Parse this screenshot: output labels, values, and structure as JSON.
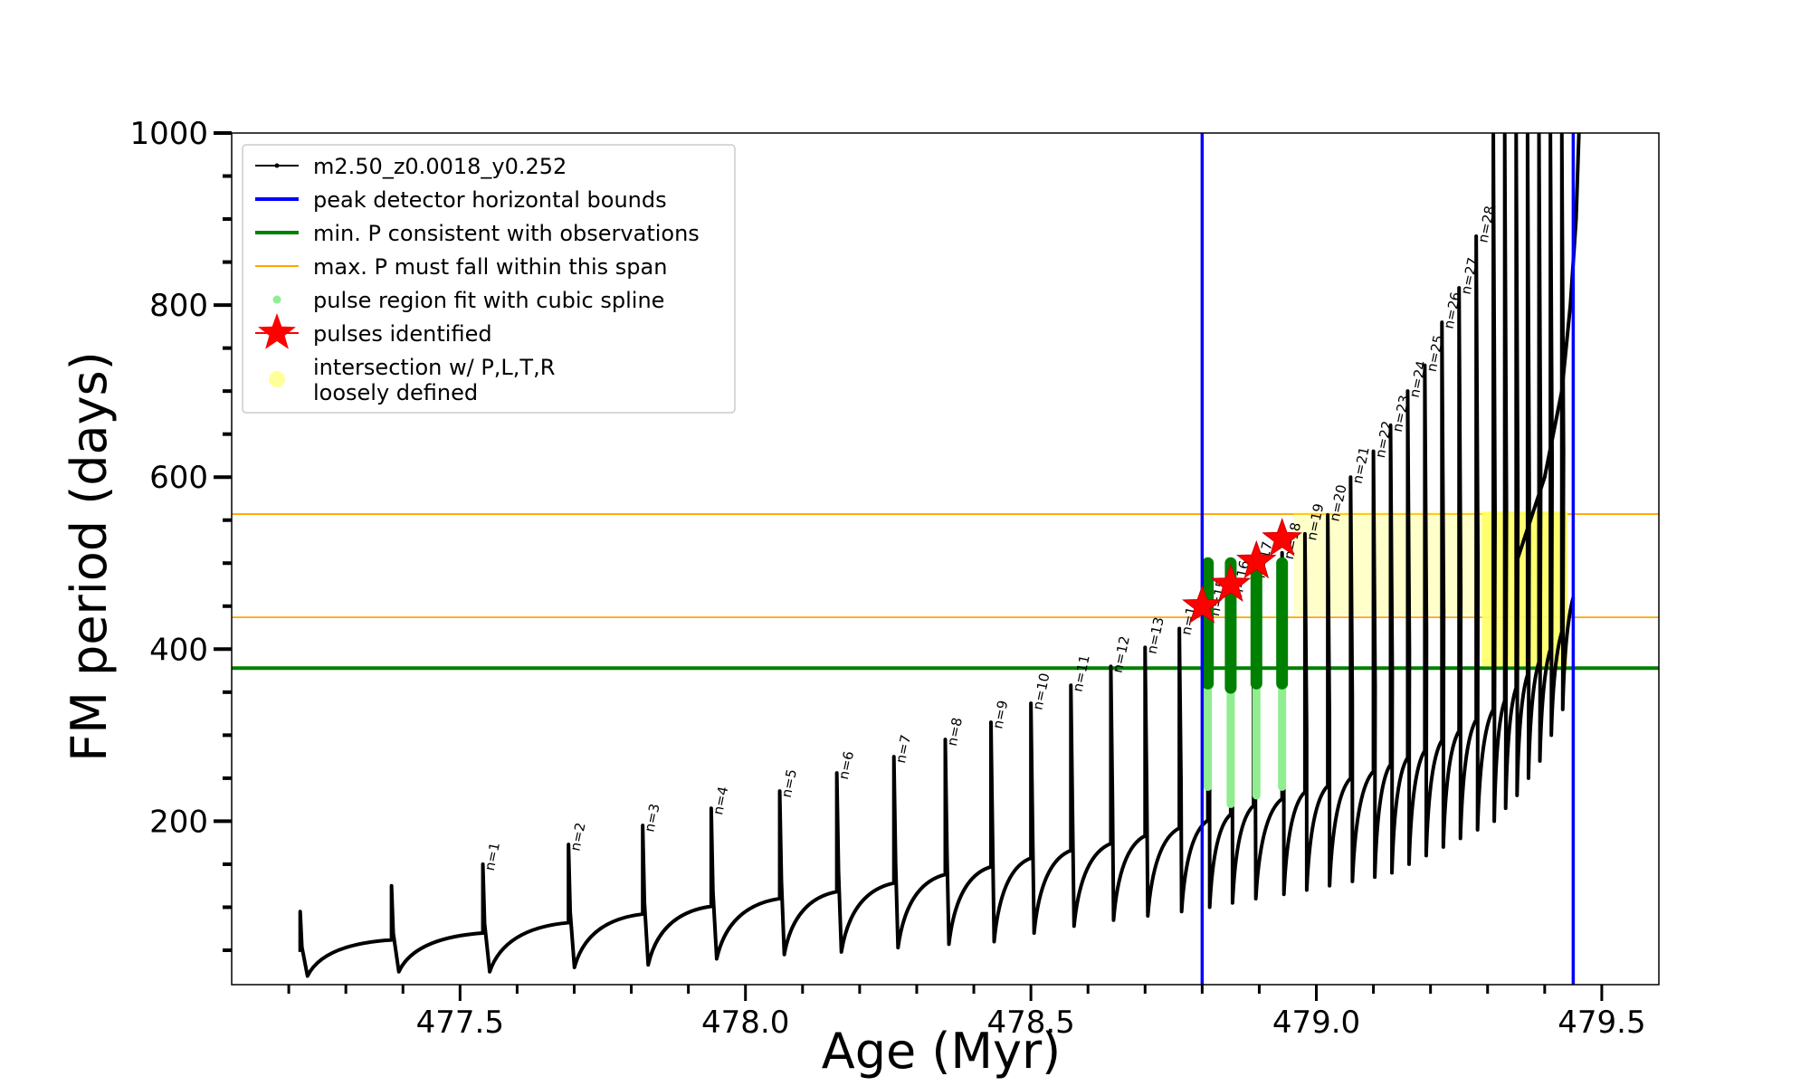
{
  "chart_data": {
    "type": "line",
    "xlabel": "Age (Myr)",
    "ylabel": "FM period (days)",
    "xlim": [
      477.1,
      479.6
    ],
    "ylim": [
      10,
      1000
    ],
    "x_ticks": [
      477.5,
      478.0,
      478.5,
      479.0,
      479.5
    ],
    "x_tick_labels": [
      "477.5",
      "478.0",
      "478.5",
      "479.0",
      "479.5"
    ],
    "y_ticks": [
      200,
      400,
      600,
      800,
      1000
    ],
    "y_tick_labels": [
      "200",
      "400",
      "600",
      "800",
      "1000"
    ],
    "legend_position": "upper-left",
    "legend": [
      {
        "label": "m2.50_z0.0018_y0.252",
        "kind": "line-dot",
        "color": "#000000"
      },
      {
        "label": "peak detector horizontal bounds",
        "kind": "line",
        "color": "#0000ff"
      },
      {
        "label": "min. P consistent with observations",
        "kind": "line",
        "color": "#008000"
      },
      {
        "label": "max. P must fall within this span",
        "kind": "thin-line",
        "color": "#ffa500"
      },
      {
        "label": "pulse region fit with cubic spline",
        "kind": "dot",
        "color": "#90ee90"
      },
      {
        "label": "pulses identified",
        "kind": "star",
        "color": "#ff0000"
      },
      {
        "label": "intersection w/ P,L,T,R",
        "label2": "loosely defined",
        "kind": "big-dot",
        "color": "#ffff99"
      }
    ],
    "vertical_lines": {
      "name": "peak detector horizontal bounds",
      "x": [
        478.8,
        479.45
      ],
      "color": "#0000ff"
    },
    "min_period_line": {
      "name": "min. P consistent with observations",
      "y": 378,
      "color": "#008000"
    },
    "max_period_span": {
      "name": "max. P must fall within this span",
      "y": [
        437,
        557
      ],
      "color": "#ffa500"
    },
    "series": [
      {
        "name": "m2.50_z0.0018_y0.252",
        "color": "#000000",
        "start": {
          "x": 477.22,
          "y": 48
        },
        "pre_pulses": [
          {
            "x": 477.22,
            "peak": 95,
            "min": 20,
            "end": 62
          },
          {
            "x": 477.38,
            "peak": 125,
            "min": 25,
            "end": 70
          }
        ],
        "pulses": [
          {
            "n": 1,
            "x": 477.54,
            "peak": 150,
            "min": 25,
            "end": 82
          },
          {
            "n": 2,
            "x": 477.69,
            "peak": 173,
            "min": 30,
            "end": 92
          },
          {
            "n": 3,
            "x": 477.82,
            "peak": 195,
            "min": 33,
            "end": 101
          },
          {
            "n": 4,
            "x": 477.94,
            "peak": 215,
            "min": 40,
            "end": 110
          },
          {
            "n": 5,
            "x": 478.06,
            "peak": 235,
            "min": 45,
            "end": 118
          },
          {
            "n": 6,
            "x": 478.16,
            "peak": 256,
            "min": 48,
            "end": 128
          },
          {
            "n": 7,
            "x": 478.26,
            "peak": 275,
            "min": 53,
            "end": 138
          },
          {
            "n": 8,
            "x": 478.35,
            "peak": 295,
            "min": 57,
            "end": 147
          },
          {
            "n": 9,
            "x": 478.43,
            "peak": 315,
            "min": 60,
            "end": 157
          },
          {
            "n": 10,
            "x": 478.5,
            "peak": 337,
            "min": 70,
            "end": 166
          },
          {
            "n": 11,
            "x": 478.57,
            "peak": 358,
            "min": 78,
            "end": 174
          },
          {
            "n": 12,
            "x": 478.64,
            "peak": 380,
            "min": 85,
            "end": 183
          },
          {
            "n": 13,
            "x": 478.7,
            "peak": 402,
            "min": 90,
            "end": 192
          },
          {
            "n": 14,
            "x": 478.76,
            "peak": 424,
            "min": 95,
            "end": 201
          },
          {
            "n": 15,
            "x": 478.81,
            "peak": 446,
            "min": 100,
            "end": 208
          },
          {
            "n": 16,
            "x": 478.85,
            "peak": 468,
            "min": 105,
            "end": 218
          },
          {
            "n": 17,
            "x": 478.89,
            "peak": 490,
            "min": 110,
            "end": 226
          },
          {
            "n": 18,
            "x": 478.94,
            "peak": 512,
            "min": 115,
            "end": 234
          },
          {
            "n": 19,
            "x": 478.98,
            "peak": 534,
            "min": 120,
            "end": 241
          },
          {
            "n": 20,
            "x": 479.02,
            "peak": 556,
            "min": 125,
            "end": 250
          },
          {
            "n": 21,
            "x": 479.06,
            "peak": 600,
            "min": 130,
            "end": 258
          },
          {
            "n": 22,
            "x": 479.1,
            "peak": 630,
            "min": 135,
            "end": 266
          },
          {
            "n": 23,
            "x": 479.13,
            "peak": 660,
            "min": 140,
            "end": 274
          },
          {
            "n": 24,
            "x": 479.16,
            "peak": 700,
            "min": 150,
            "end": 282
          },
          {
            "n": 25,
            "x": 479.19,
            "peak": 730,
            "min": 160,
            "end": 294
          },
          {
            "n": 26,
            "x": 479.22,
            "peak": 780,
            "min": 170,
            "end": 305
          },
          {
            "n": 27,
            "x": 479.25,
            "peak": 820,
            "min": 180,
            "end": 318
          },
          {
            "n": 28,
            "x": 479.28,
            "peak": 880,
            "min": 190,
            "end": 330
          },
          {
            "x": 479.31,
            "peak": 1000,
            "min": 200,
            "end": 340
          },
          {
            "x": 479.33,
            "peak": 1000,
            "min": 215,
            "end": 355
          },
          {
            "x": 479.35,
            "peak": 1000,
            "min": 230,
            "end": 370
          },
          {
            "x": 479.37,
            "peak": 1000,
            "min": 250,
            "end": 385
          },
          {
            "x": 479.39,
            "peak": 1000,
            "min": 270,
            "end": 400
          },
          {
            "x": 479.41,
            "peak": 1000,
            "min": 300,
            "end": 420
          },
          {
            "x": 479.43,
            "peak": 1000,
            "min": 330,
            "end": 460
          }
        ],
        "final_rise": [
          [
            479.35,
            500
          ],
          [
            479.4,
            600
          ],
          [
            479.43,
            700
          ],
          [
            479.445,
            800
          ],
          [
            479.455,
            900
          ],
          [
            479.46,
            1000
          ]
        ]
      }
    ],
    "spline_fit_regions": [
      {
        "x": 478.81,
        "y_range": [
          240,
          500
        ],
        "dark_from": 360
      },
      {
        "x": 478.85,
        "y_range": [
          220,
          500
        ],
        "dark_from": 355
      },
      {
        "x": 478.895,
        "y_range": [
          230,
          500
        ],
        "dark_from": 360
      },
      {
        "x": 478.94,
        "y_range": [
          240,
          500
        ],
        "dark_from": 360
      }
    ],
    "pulses_identified": [
      {
        "x": 478.8,
        "y": 450
      },
      {
        "x": 478.85,
        "y": 475
      },
      {
        "x": 478.895,
        "y": 502
      },
      {
        "x": 478.94,
        "y": 528
      }
    ],
    "loose_intersection_regions": [
      {
        "x_range": [
          478.96,
          479.44
        ],
        "y_range": [
          440,
          560
        ]
      },
      {
        "x_range": [
          479.29,
          479.44
        ],
        "y_range": [
          380,
          560
        ]
      }
    ]
  }
}
